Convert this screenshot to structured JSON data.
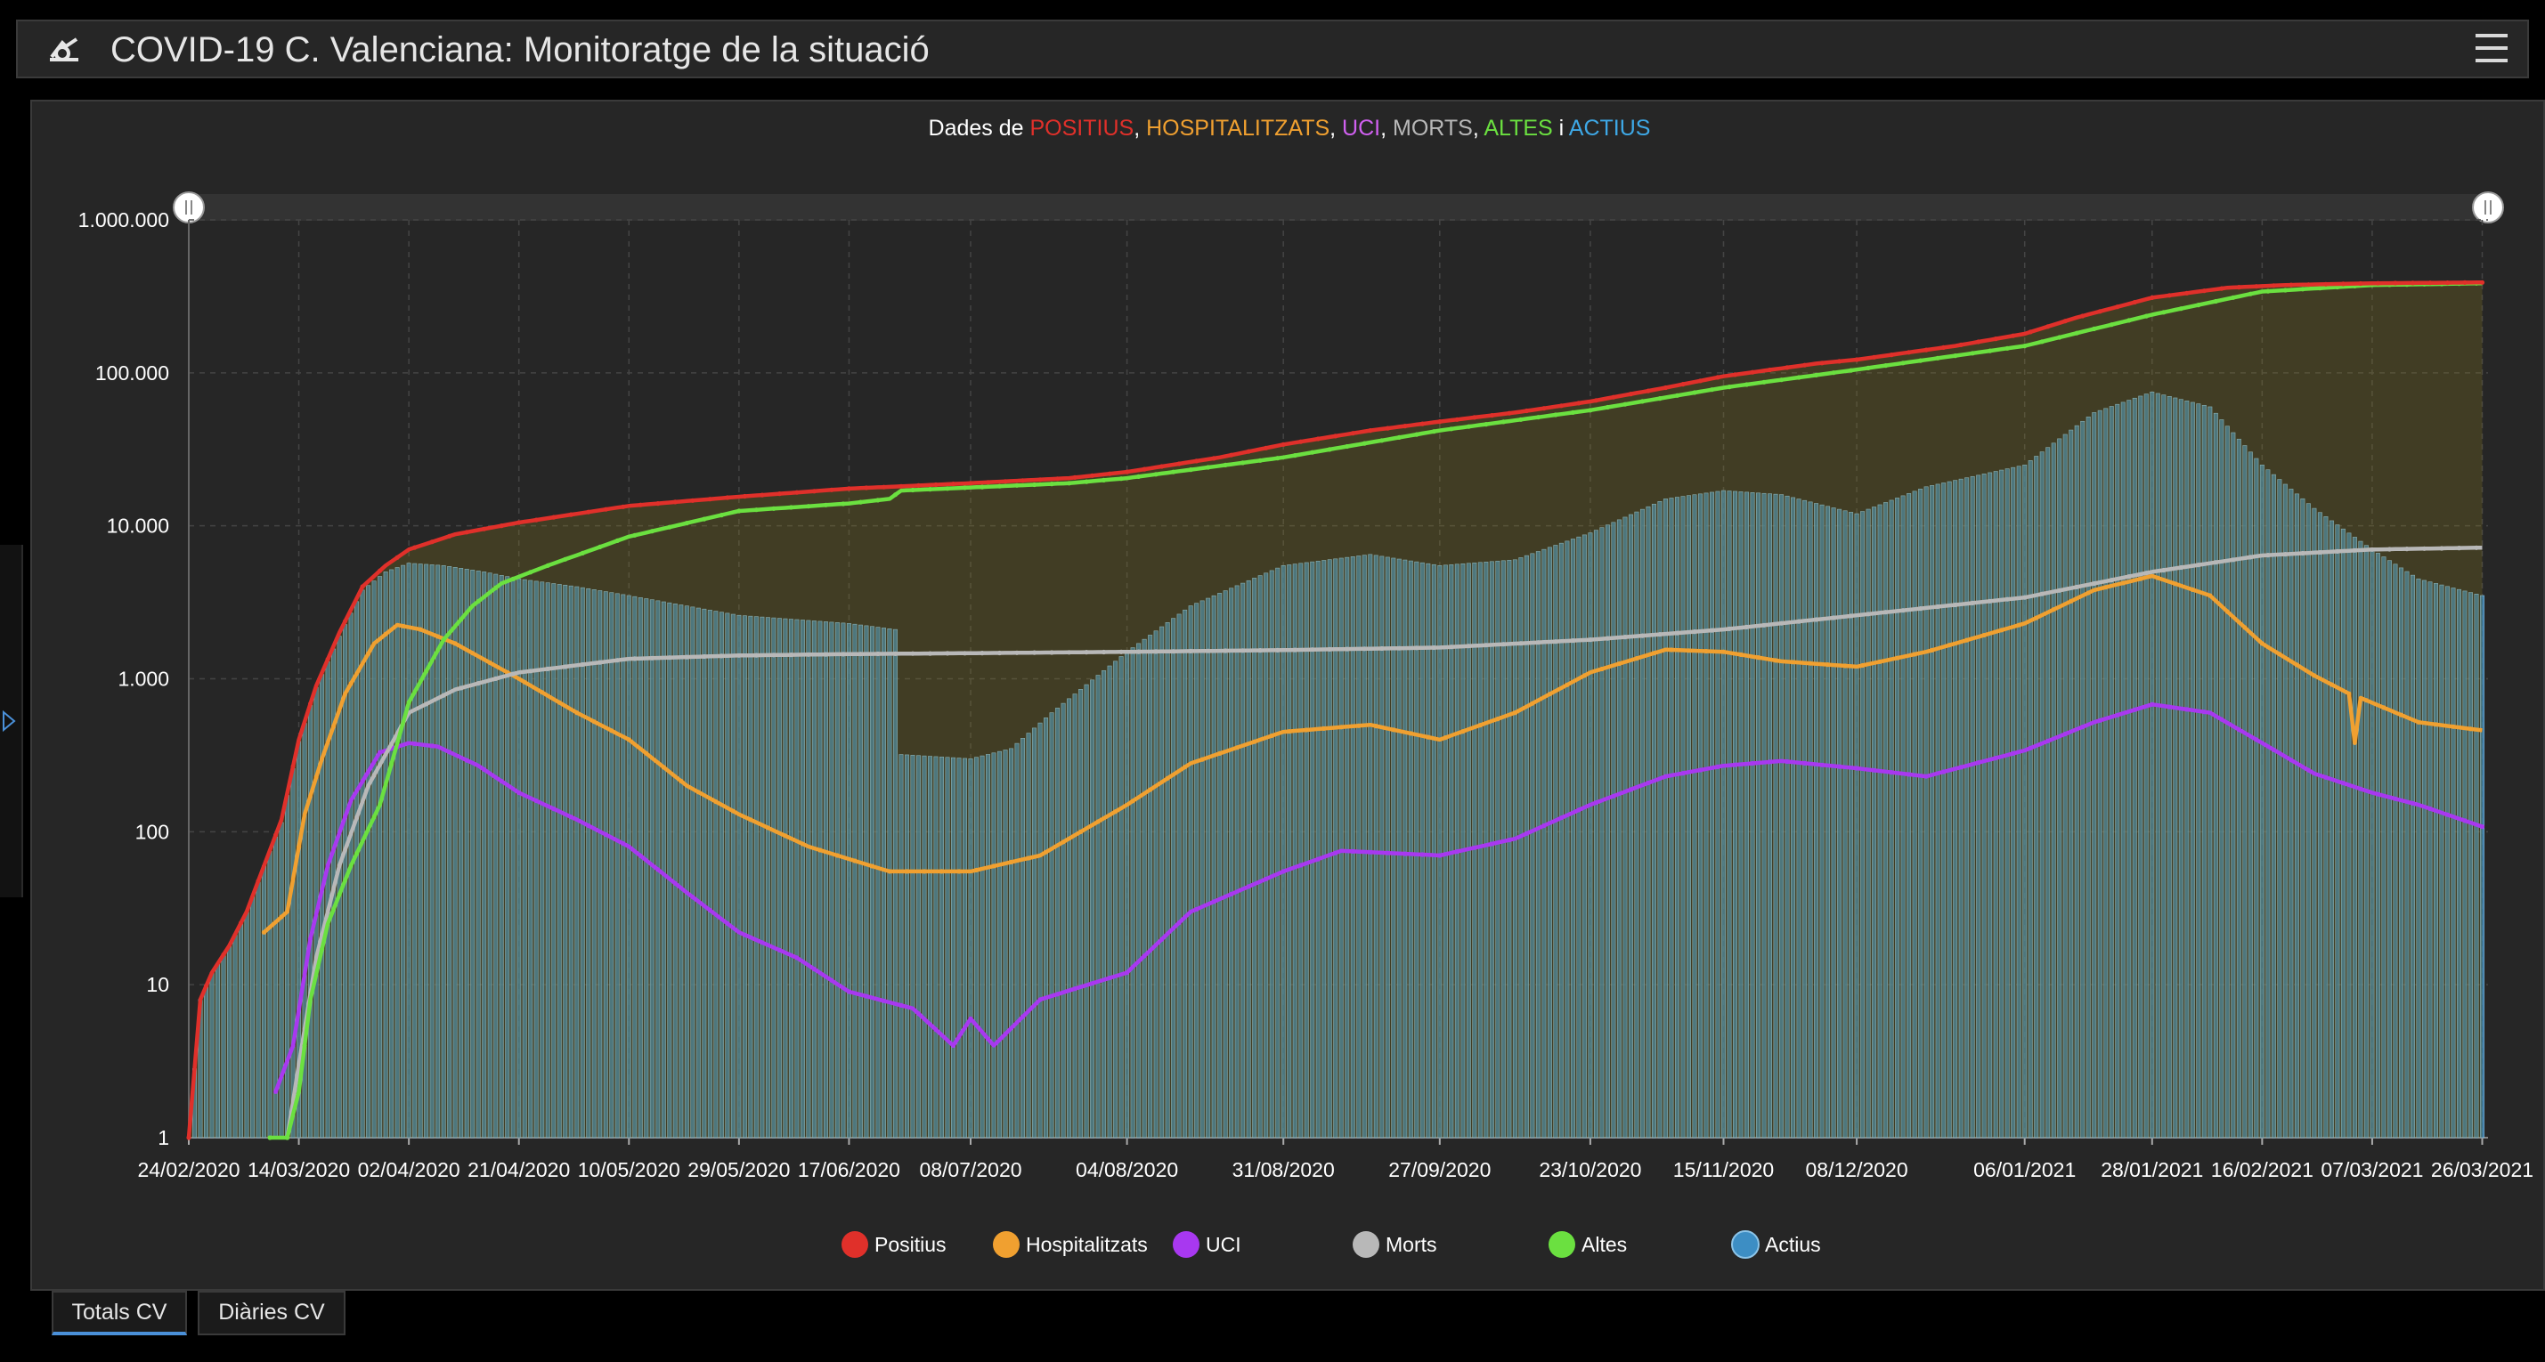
{
  "header": {
    "title": "COVID-19 C. Valenciana: Monitoratge de la situació"
  },
  "tabs": [
    {
      "label": "Totals CV",
      "active": true
    },
    {
      "label": "Diàries CV",
      "active": false
    }
  ],
  "colors": {
    "positius": "#e0302a",
    "hospitalitzats": "#f0a030",
    "uci": "#a838f0",
    "morts": "#b8b8b8",
    "altes": "#6be040",
    "actius": "#3d8ec4"
  },
  "chart_data": {
    "type": "line",
    "title_parts": [
      {
        "text": "Dades de ",
        "color": "#ffffff"
      },
      {
        "text": "POSITIUS",
        "color": "#e0302a"
      },
      {
        "text": ", ",
        "color": "#ffffff"
      },
      {
        "text": "HOSPITALITZATS",
        "color": "#f0a030"
      },
      {
        "text": ", ",
        "color": "#ffffff"
      },
      {
        "text": "UCI",
        "color": "#d060f0"
      },
      {
        "text": ", ",
        "color": "#ffffff"
      },
      {
        "text": "MORTS",
        "color": "#b8b8b8"
      },
      {
        "text": ", ",
        "color": "#ffffff"
      },
      {
        "text": "ALTES",
        "color": "#6be040"
      },
      {
        "text": " i ",
        "color": "#ffffff"
      },
      {
        "text": "ACTIUS",
        "color": "#3ea8e6"
      }
    ],
    "y_scale": "log",
    "ylim": [
      1,
      1000000
    ],
    "y_ticks": [
      {
        "value": 1,
        "label": "1"
      },
      {
        "value": 10,
        "label": "10"
      },
      {
        "value": 100,
        "label": "100"
      },
      {
        "value": 1000,
        "label": "1.000"
      },
      {
        "value": 10000,
        "label": "10.000"
      },
      {
        "value": 100000,
        "label": "100.000"
      },
      {
        "value": 1000000,
        "label": "1.000.000"
      }
    ],
    "xlim": [
      "2020-02-24",
      "2021-03-27"
    ],
    "x_ticks": [
      {
        "date": "2020-02-24",
        "label": "24/02/2020"
      },
      {
        "date": "2020-03-14",
        "label": "14/03/2020"
      },
      {
        "date": "2020-04-02",
        "label": "02/04/2020"
      },
      {
        "date": "2020-04-21",
        "label": "21/04/2020"
      },
      {
        "date": "2020-05-10",
        "label": "10/05/2020"
      },
      {
        "date": "2020-05-29",
        "label": "29/05/2020"
      },
      {
        "date": "2020-06-17",
        "label": "17/06/2020"
      },
      {
        "date": "2020-07-08",
        "label": "08/07/2020"
      },
      {
        "date": "2020-08-04",
        "label": "04/08/2020"
      },
      {
        "date": "2020-08-31",
        "label": "31/08/2020"
      },
      {
        "date": "2020-09-27",
        "label": "27/09/2020"
      },
      {
        "date": "2020-10-23",
        "label": "23/10/2020"
      },
      {
        "date": "2020-11-15",
        "label": "15/11/2020"
      },
      {
        "date": "2020-12-08",
        "label": "08/12/2020"
      },
      {
        "date": "2021-01-06",
        "label": "06/01/2021"
      },
      {
        "date": "2021-01-28",
        "label": "28/01/2021"
      },
      {
        "date": "2021-02-16",
        "label": "16/02/2021"
      },
      {
        "date": "2021-03-07",
        "label": "07/03/2021"
      },
      {
        "date": "2021-03-26",
        "label": "26/03/2021"
      }
    ],
    "grid": true,
    "legend_position": "bottom",
    "legend": [
      "Positius",
      "Hospitalitzats",
      "UCI",
      "Morts",
      "Altes",
      "Actius"
    ],
    "series": [
      {
        "name": "Positius",
        "key": "positius",
        "style": "line",
        "points": [
          [
            "2020-02-24",
            1
          ],
          [
            "2020-02-26",
            8
          ],
          [
            "2020-02-28",
            12
          ],
          [
            "2020-03-02",
            18
          ],
          [
            "2020-03-05",
            30
          ],
          [
            "2020-03-08",
            60
          ],
          [
            "2020-03-11",
            120
          ],
          [
            "2020-03-14",
            400
          ],
          [
            "2020-03-17",
            900
          ],
          [
            "2020-03-21",
            2000
          ],
          [
            "2020-03-25",
            4000
          ],
          [
            "2020-03-29",
            5500
          ],
          [
            "2020-04-02",
            7000
          ],
          [
            "2020-04-10",
            8800
          ],
          [
            "2020-04-21",
            10500
          ],
          [
            "2020-05-10",
            13500
          ],
          [
            "2020-05-29",
            15500
          ],
          [
            "2020-06-17",
            17500
          ],
          [
            "2020-07-08",
            19000
          ],
          [
            "2020-07-25",
            20500
          ],
          [
            "2020-08-04",
            22500
          ],
          [
            "2020-08-20",
            28000
          ],
          [
            "2020-08-31",
            34000
          ],
          [
            "2020-09-15",
            42000
          ],
          [
            "2020-09-27",
            48000
          ],
          [
            "2020-10-10",
            55000
          ],
          [
            "2020-10-23",
            65000
          ],
          [
            "2020-11-05",
            80000
          ],
          [
            "2020-11-15",
            95000
          ],
          [
            "2020-12-01",
            115000
          ],
          [
            "2020-12-08",
            122000
          ],
          [
            "2020-12-25",
            150000
          ],
          [
            "2021-01-06",
            180000
          ],
          [
            "2021-01-15",
            230000
          ],
          [
            "2021-01-28",
            310000
          ],
          [
            "2021-02-10",
            360000
          ],
          [
            "2021-02-20",
            375000
          ],
          [
            "2021-03-07",
            385000
          ],
          [
            "2021-03-26",
            390000
          ]
        ]
      },
      {
        "name": "Altes",
        "key": "altes",
        "style": "line",
        "points": [
          [
            "2020-03-09",
            1
          ],
          [
            "2020-03-12",
            1
          ],
          [
            "2020-03-14",
            2
          ],
          [
            "2020-03-16",
            8
          ],
          [
            "2020-03-19",
            25
          ],
          [
            "2020-03-23",
            60
          ],
          [
            "2020-03-28",
            150
          ],
          [
            "2020-04-02",
            700
          ],
          [
            "2020-04-08",
            1800
          ],
          [
            "2020-04-13",
            3000
          ],
          [
            "2020-04-18",
            4200
          ],
          [
            "2020-04-26",
            5500
          ],
          [
            "2020-05-10",
            8500
          ],
          [
            "2020-05-29",
            12500
          ],
          [
            "2020-06-17",
            14000
          ],
          [
            "2020-06-24",
            15000
          ],
          [
            "2020-06-26",
            17000
          ],
          [
            "2020-07-08",
            17800
          ],
          [
            "2020-07-25",
            19000
          ],
          [
            "2020-08-04",
            20500
          ],
          [
            "2020-08-31",
            28000
          ],
          [
            "2020-09-27",
            42000
          ],
          [
            "2020-10-23",
            57000
          ],
          [
            "2020-11-15",
            80000
          ],
          [
            "2020-12-08",
            105000
          ],
          [
            "2021-01-06",
            150000
          ],
          [
            "2021-01-28",
            240000
          ],
          [
            "2021-02-16",
            340000
          ],
          [
            "2021-03-07",
            375000
          ],
          [
            "2021-03-26",
            385000
          ]
        ]
      },
      {
        "name": "Morts",
        "key": "morts",
        "style": "line",
        "points": [
          [
            "2020-03-12",
            1
          ],
          [
            "2020-03-14",
            3
          ],
          [
            "2020-03-17",
            15
          ],
          [
            "2020-03-21",
            60
          ],
          [
            "2020-03-26",
            200
          ],
          [
            "2020-04-02",
            600
          ],
          [
            "2020-04-10",
            850
          ],
          [
            "2020-04-21",
            1100
          ],
          [
            "2020-05-10",
            1350
          ],
          [
            "2020-05-29",
            1420
          ],
          [
            "2020-06-17",
            1450
          ],
          [
            "2020-07-08",
            1470
          ],
          [
            "2020-08-04",
            1500
          ],
          [
            "2020-08-31",
            1540
          ],
          [
            "2020-09-27",
            1600
          ],
          [
            "2020-10-23",
            1800
          ],
          [
            "2020-11-15",
            2100
          ],
          [
            "2020-12-08",
            2600
          ],
          [
            "2021-01-06",
            3400
          ],
          [
            "2021-01-28",
            5000
          ],
          [
            "2021-02-16",
            6400
          ],
          [
            "2021-03-07",
            7000
          ],
          [
            "2021-03-26",
            7200
          ]
        ]
      },
      {
        "name": "Hospitalitzats",
        "key": "hospitalitzats",
        "style": "line",
        "points": [
          [
            "2020-03-08",
            22
          ],
          [
            "2020-03-12",
            30
          ],
          [
            "2020-03-15",
            130
          ],
          [
            "2020-03-18",
            300
          ],
          [
            "2020-03-22",
            800
          ],
          [
            "2020-03-27",
            1700
          ],
          [
            "2020-03-31",
            2250
          ],
          [
            "2020-04-04",
            2100
          ],
          [
            "2020-04-10",
            1700
          ],
          [
            "2020-04-21",
            1000
          ],
          [
            "2020-05-01",
            600
          ],
          [
            "2020-05-10",
            400
          ],
          [
            "2020-05-20",
            200
          ],
          [
            "2020-05-29",
            130
          ],
          [
            "2020-06-10",
            80
          ],
          [
            "2020-06-24",
            55
          ],
          [
            "2020-07-08",
            55
          ],
          [
            "2020-07-20",
            70
          ],
          [
            "2020-08-04",
            150
          ],
          [
            "2020-08-15",
            280
          ],
          [
            "2020-08-31",
            450
          ],
          [
            "2020-09-15",
            500
          ],
          [
            "2020-09-27",
            400
          ],
          [
            "2020-10-10",
            600
          ],
          [
            "2020-10-23",
            1100
          ],
          [
            "2020-11-05",
            1550
          ],
          [
            "2020-11-15",
            1500
          ],
          [
            "2020-11-25",
            1300
          ],
          [
            "2020-12-08",
            1200
          ],
          [
            "2020-12-20",
            1500
          ],
          [
            "2021-01-06",
            2300
          ],
          [
            "2021-01-18",
            3800
          ],
          [
            "2021-01-28",
            4700
          ],
          [
            "2021-02-07",
            3500
          ],
          [
            "2021-02-16",
            1700
          ],
          [
            "2021-02-25",
            1050
          ],
          [
            "2021-03-03",
            800
          ],
          [
            "2021-03-04",
            380
          ],
          [
            "2021-03-05",
            750
          ],
          [
            "2021-03-15",
            520
          ],
          [
            "2021-03-26",
            460
          ]
        ]
      },
      {
        "name": "UCI",
        "key": "uci",
        "style": "line",
        "points": [
          [
            "2020-03-10",
            2
          ],
          [
            "2020-03-13",
            4
          ],
          [
            "2020-03-16",
            20
          ],
          [
            "2020-03-19",
            60
          ],
          [
            "2020-03-23",
            160
          ],
          [
            "2020-03-28",
            330
          ],
          [
            "2020-04-02",
            380
          ],
          [
            "2020-04-07",
            360
          ],
          [
            "2020-04-14",
            270
          ],
          [
            "2020-04-21",
            180
          ],
          [
            "2020-05-01",
            120
          ],
          [
            "2020-05-10",
            80
          ],
          [
            "2020-05-20",
            40
          ],
          [
            "2020-05-29",
            22
          ],
          [
            "2020-06-08",
            15
          ],
          [
            "2020-06-17",
            9
          ],
          [
            "2020-06-28",
            7
          ],
          [
            "2020-07-05",
            4
          ],
          [
            "2020-07-08",
            6
          ],
          [
            "2020-07-12",
            4
          ],
          [
            "2020-07-20",
            8
          ],
          [
            "2020-08-04",
            12
          ],
          [
            "2020-08-15",
            30
          ],
          [
            "2020-08-31",
            55
          ],
          [
            "2020-09-10",
            75
          ],
          [
            "2020-09-27",
            70
          ],
          [
            "2020-10-10",
            90
          ],
          [
            "2020-10-23",
            150
          ],
          [
            "2020-11-05",
            230
          ],
          [
            "2020-11-15",
            270
          ],
          [
            "2020-11-25",
            290
          ],
          [
            "2020-12-08",
            260
          ],
          [
            "2020-12-20",
            230
          ],
          [
            "2021-01-06",
            340
          ],
          [
            "2021-01-18",
            520
          ],
          [
            "2021-01-28",
            680
          ],
          [
            "2021-02-07",
            600
          ],
          [
            "2021-02-16",
            380
          ],
          [
            "2021-02-25",
            240
          ],
          [
            "2021-03-07",
            180
          ],
          [
            "2021-03-15",
            150
          ],
          [
            "2021-03-26",
            108
          ]
        ]
      },
      {
        "name": "Actius",
        "key": "actius",
        "style": "bar",
        "points": [
          [
            "2020-02-24",
            1
          ],
          [
            "2020-02-26",
            8
          ],
          [
            "2020-02-28",
            12
          ],
          [
            "2020-03-02",
            18
          ],
          [
            "2020-03-05",
            30
          ],
          [
            "2020-03-08",
            60
          ],
          [
            "2020-03-11",
            115
          ],
          [
            "2020-03-14",
            390
          ],
          [
            "2020-03-17",
            880
          ],
          [
            "2020-03-21",
            1900
          ],
          [
            "2020-03-25",
            3800
          ],
          [
            "2020-03-29",
            5000
          ],
          [
            "2020-04-02",
            5700
          ],
          [
            "2020-04-08",
            5500
          ],
          [
            "2020-04-15",
            5000
          ],
          [
            "2020-04-21",
            4500
          ],
          [
            "2020-05-01",
            4000
          ],
          [
            "2020-05-10",
            3500
          ],
          [
            "2020-05-29",
            2600
          ],
          [
            "2020-06-17",
            2300
          ],
          [
            "2020-06-25",
            2100
          ],
          [
            "2020-06-26",
            320
          ],
          [
            "2020-07-08",
            300
          ],
          [
            "2020-07-15",
            350
          ],
          [
            "2020-07-22",
            600
          ],
          [
            "2020-08-04",
            1500
          ],
          [
            "2020-08-15",
            3000
          ],
          [
            "2020-08-31",
            5500
          ],
          [
            "2020-09-15",
            6500
          ],
          [
            "2020-09-27",
            5500
          ],
          [
            "2020-10-10",
            6000
          ],
          [
            "2020-10-23",
            9000
          ],
          [
            "2020-11-05",
            15000
          ],
          [
            "2020-11-15",
            17000
          ],
          [
            "2020-11-25",
            16000
          ],
          [
            "2020-12-08",
            12000
          ],
          [
            "2020-12-20",
            18000
          ],
          [
            "2021-01-06",
            25000
          ],
          [
            "2021-01-18",
            55000
          ],
          [
            "2021-01-28",
            75000
          ],
          [
            "2021-02-07",
            60000
          ],
          [
            "2021-02-16",
            25000
          ],
          [
            "2021-02-25",
            13000
          ],
          [
            "2021-03-07",
            7000
          ],
          [
            "2021-03-15",
            4500
          ],
          [
            "2021-03-26",
            3500
          ]
        ]
      }
    ]
  }
}
